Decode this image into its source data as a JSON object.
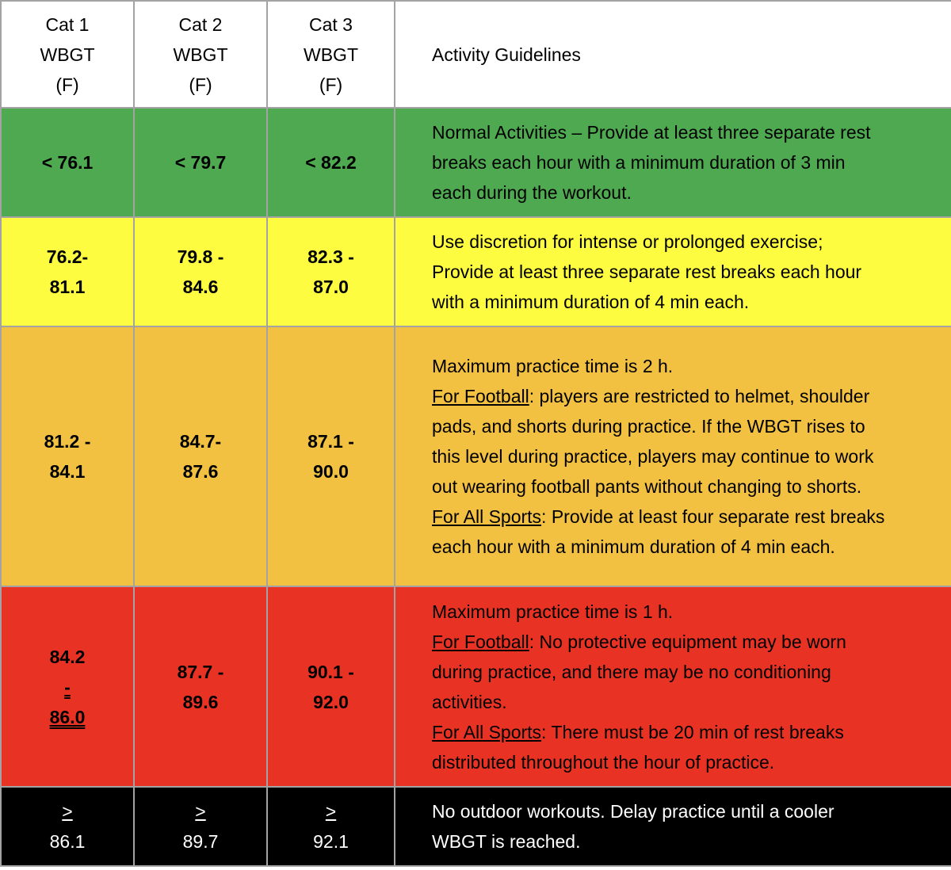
{
  "header": {
    "cat1": [
      "Cat 1",
      "WBGT",
      "(F)"
    ],
    "cat2": [
      "Cat 2",
      "WBGT",
      "(F)"
    ],
    "cat3": [
      "Cat 3",
      "WBGT",
      "(F)"
    ],
    "guidelines": "Activity Guidelines"
  },
  "rows": [
    {
      "color": "#4ea950",
      "cat1": [
        "< 76.1"
      ],
      "cat2": [
        "< 79.7"
      ],
      "cat3": [
        "< 82.2"
      ],
      "guideline": [
        "Normal Activities – Provide at least three separate rest",
        "breaks each hour with a minimum duration of 3 min",
        "each during the workout."
      ]
    },
    {
      "color": "#fdfc41",
      "cat1": [
        "76.2-",
        "81.1"
      ],
      "cat2": [
        "79.8 -",
        "84.6"
      ],
      "cat3": [
        "82.3 -",
        "87.0"
      ],
      "guideline": [
        "Use discretion for intense or prolonged exercise;",
        "Provide at least three separate rest breaks each hour",
        "with a minimum duration of 4 min each."
      ]
    },
    {
      "color": "#f3c142",
      "cat1": [
        "81.2 -",
        "84.1"
      ],
      "cat2": [
        "84.7-",
        "87.6"
      ],
      "cat3": [
        "87.1 -",
        "90.0"
      ],
      "guideline": {
        "l1": "Maximum practice time is 2 h.",
        "football_label": "For Football",
        "l2_rest": ": players are restricted to helmet, shoulder",
        "l3": "pads, and shorts during practice.  If the WBGT rises to",
        "l4": "this level during practice, players may continue to work",
        "l5": "out wearing football pants without changing to shorts.",
        "allsports_label": "For All Sports",
        "l6_rest": ": Provide at least four separate rest breaks",
        "l7": "each hour with a minimum duration of 4 min each."
      }
    },
    {
      "color": "#e83324",
      "cat1": [
        "84.2 ",
        "-",
        "86.0"
      ],
      "cat2": [
        "87.7 -",
        "89.6"
      ],
      "cat3": [
        "90.1 -",
        "92.0"
      ],
      "guideline": {
        "l1": "Maximum practice time is 1 h.",
        "football_label": "For Football",
        "l2_rest": ": No protective equipment may be worn",
        "l3": "during practice, and there may be no conditioning",
        "l4": "activities.",
        "allsports_label": "For All Sports",
        "l5_rest": ": There must be 20 min of rest breaks",
        "l6": "distributed throughout the hour of practice."
      }
    },
    {
      "color": "#000000",
      "cat1": [
        ">",
        " 86.1"
      ],
      "cat2": [
        ">",
        " 89.7"
      ],
      "cat3": [
        ">",
        " 92.1"
      ],
      "guideline": [
        "No outdoor workouts. Delay practice until a cooler",
        "WBGT is reached."
      ]
    }
  ]
}
